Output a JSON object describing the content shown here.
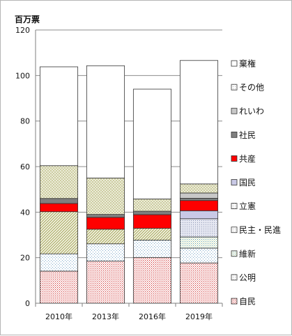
{
  "chart_data": {
    "type": "bar",
    "stacked": true,
    "unit_label": "百万票",
    "categories": [
      "2010年",
      "2013年",
      "2016年",
      "2019年"
    ],
    "ylim": [
      0,
      120
    ],
    "yticks": [
      0,
      20,
      40,
      60,
      80,
      100,
      120
    ],
    "grid": "horizontal",
    "legend_position": "right",
    "series": [
      {
        "name": "自民",
        "values": [
          14.1,
          18.5,
          20.1,
          17.7
        ],
        "fill": "dots-red"
      },
      {
        "name": "公明",
        "values": [
          7.6,
          7.6,
          7.6,
          6.5
        ],
        "fill": "dots-blue"
      },
      {
        "name": "維新",
        "values": [
          0,
          0,
          0,
          4.9
        ],
        "fill": "dots-teal"
      },
      {
        "name": "民主・民進",
        "values": [
          18.5,
          6.4,
          5.2,
          0
        ],
        "fill": "diag-olive"
      },
      {
        "name": "立憲",
        "values": [
          0,
          0,
          0,
          8.0
        ],
        "fill": "dots-blue-grey"
      },
      {
        "name": "国民",
        "values": [
          0,
          0,
          0,
          3.5
        ],
        "fill": "solid-lavender"
      },
      {
        "name": "共産",
        "values": [
          3.6,
          5.2,
          6.0,
          4.5
        ],
        "fill": "solid-red"
      },
      {
        "name": "社民",
        "values": [
          2.2,
          1.3,
          1.5,
          1.0
        ],
        "fill": "solid-grey"
      },
      {
        "name": "れいわ",
        "values": [
          0,
          0,
          0,
          2.3
        ],
        "fill": "solid-light-grey"
      },
      {
        "name": "その他",
        "values": [
          14.4,
          16.0,
          5.4,
          4.0
        ],
        "fill": "dots-olive"
      },
      {
        "name": "棄権",
        "values": [
          43.4,
          49.3,
          48.2,
          54.2
        ],
        "fill": "solid-white"
      }
    ],
    "colors": {
      "red": "#ff0000",
      "grey": "#7f7f7f",
      "light_grey": "#c8c8c8",
      "lavender": "#c9c9e6",
      "olive": "#a4a45a",
      "blue": "#7aa6c8"
    }
  }
}
